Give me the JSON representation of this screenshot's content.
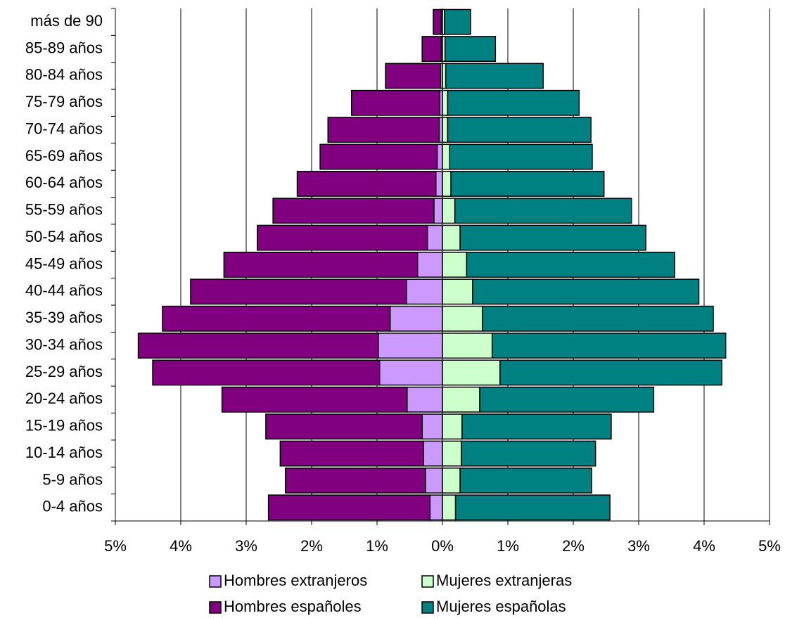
{
  "chart_data": {
    "type": "pyramid",
    "categories": [
      "0-4 años",
      "5-9 años",
      "10-14 años",
      "15-19 años",
      "20-24 años",
      "25-29 años",
      "30-34 años",
      "35-39 años",
      "40-44 años",
      "45-49 años",
      "50-54 años",
      "55-59 años",
      "60-64 años",
      "65-69 años",
      "70-74 años",
      "75-79 años",
      "80-84 años",
      "85-89 años",
      "más de 90"
    ],
    "series": [
      {
        "name": "Hombres extranjeros",
        "color": "#cc99ff",
        "values": [
          -0.19,
          -0.26,
          -0.29,
          -0.31,
          -0.54,
          -0.96,
          -0.98,
          -0.8,
          -0.55,
          -0.38,
          -0.23,
          -0.13,
          -0.1,
          -0.08,
          -0.05,
          -0.04,
          -0.03,
          -0.02,
          -0.02
        ]
      },
      {
        "name": "Mujeres extranjeras",
        "color": "#ccffcc",
        "values": [
          0.2,
          0.27,
          0.29,
          0.3,
          0.57,
          0.88,
          0.76,
          0.61,
          0.46,
          0.37,
          0.27,
          0.19,
          0.13,
          0.11,
          0.08,
          0.08,
          0.05,
          0.04,
          0.03
        ]
      },
      {
        "name": "Hombres españoles",
        "color": "#800080",
        "values": [
          -2.47,
          -2.14,
          -2.19,
          -2.39,
          -2.83,
          -3.47,
          -3.67,
          -3.48,
          -3.3,
          -2.96,
          -2.6,
          -2.46,
          -2.12,
          -1.79,
          -1.7,
          -1.35,
          -0.84,
          -0.29,
          -0.12
        ]
      },
      {
        "name": "Mujeres españolas",
        "color": "#008080",
        "values": [
          2.36,
          2.01,
          2.05,
          2.28,
          2.66,
          3.39,
          3.57,
          3.53,
          3.46,
          3.18,
          2.84,
          2.7,
          2.34,
          2.18,
          2.19,
          2.01,
          1.49,
          0.77,
          0.4
        ]
      }
    ],
    "xlim": [
      -5,
      5
    ],
    "xticks": [
      {
        "value": -5,
        "label": "5%"
      },
      {
        "value": -4,
        "label": "4%"
      },
      {
        "value": -3,
        "label": "3%"
      },
      {
        "value": -2,
        "label": "2%"
      },
      {
        "value": -1,
        "label": "1%"
      },
      {
        "value": 0,
        "label": "0%"
      },
      {
        "value": 1,
        "label": "1%"
      },
      {
        "value": 2,
        "label": "2%"
      },
      {
        "value": 3,
        "label": "3%"
      },
      {
        "value": 4,
        "label": "4%"
      },
      {
        "value": 5,
        "label": "5%"
      }
    ],
    "grid": true
  }
}
